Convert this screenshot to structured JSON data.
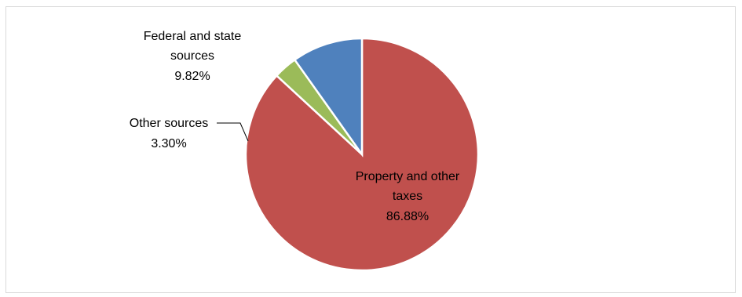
{
  "chart_data": {
    "type": "pie",
    "title": "",
    "slices": [
      {
        "name": "Property and other taxes",
        "value": 86.88,
        "label": "86.88%",
        "color": "#c0504d",
        "label_lines": [
          "Property and other",
          "taxes",
          "86.88%"
        ]
      },
      {
        "name": "Other sources",
        "value": 3.3,
        "label": "3.30%",
        "color": "#9bbb59",
        "label_lines": [
          "Other sources",
          "3.30%"
        ]
      },
      {
        "name": "Federal and state sources",
        "value": 9.82,
        "label": "9.82%",
        "color": "#4f81bd",
        "label_lines": [
          "Federal and state",
          "sources",
          "9.82%"
        ]
      }
    ],
    "legend": "none",
    "start_angle_deg": 0,
    "direction": "clockwise"
  }
}
